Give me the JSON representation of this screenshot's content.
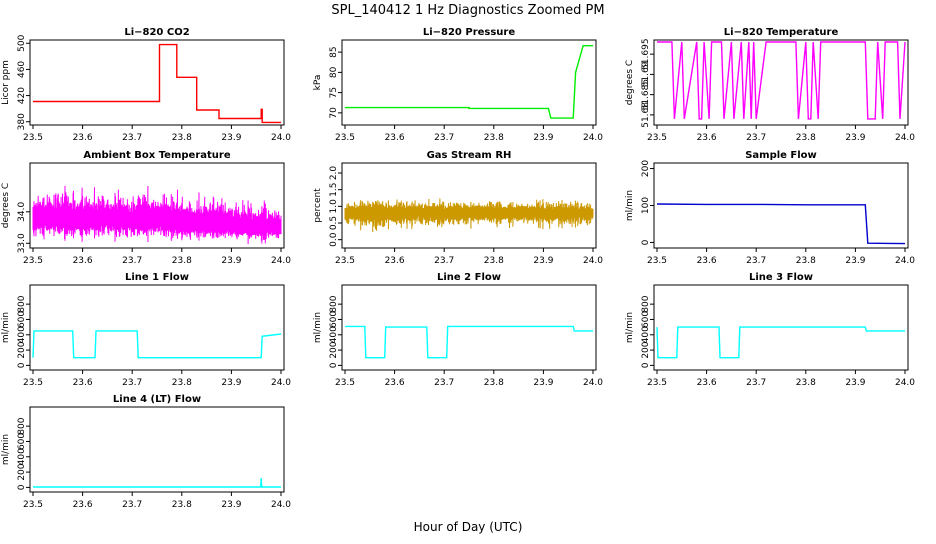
{
  "title": "SPL_140412  1 Hz Diagnostics Zoomed PM",
  "xlabel": "Hour of Day (UTC)",
  "chart_data": [
    {
      "type": "line",
      "title": "Li−820 CO2",
      "ylabel": "Licor ppm",
      "color": "#ff0000",
      "xlim": [
        23.5,
        24.0
      ],
      "ylim": [
        375,
        505
      ],
      "yticks": [
        380,
        420,
        460,
        500
      ],
      "x": [
        23.5,
        23.755,
        23.755,
        23.79,
        23.79,
        23.83,
        23.83,
        23.875,
        23.875,
        23.96,
        23.96,
        23.962,
        23.962,
        24.0
      ],
      "y": [
        411,
        411,
        498,
        498,
        448,
        448,
        398,
        398,
        385,
        385,
        399,
        399,
        379,
        379
      ]
    },
    {
      "type": "line",
      "title": "Li−820 Pressure",
      "ylabel": "kPa",
      "color": "#00ee00",
      "xlim": [
        23.5,
        24.0
      ],
      "ylim": [
        67,
        88
      ],
      "yticks": [
        70,
        75,
        80,
        85
      ],
      "x": [
        23.5,
        23.75,
        23.75,
        23.91,
        23.915,
        23.96,
        23.965,
        23.98,
        23.985,
        24.0
      ],
      "y": [
        71.3,
        71.3,
        71.1,
        71.1,
        68.7,
        68.7,
        80.0,
        86.6,
        86.6,
        86.6
      ]
    },
    {
      "type": "line",
      "title": "Li−820 Temperature",
      "ylabel": "degrees C",
      "color": "#ff00ff",
      "xlim": [
        23.5,
        24.0
      ],
      "ylim": [
        51.6775,
        51.6985
      ],
      "yticks": [
        51.68,
        51.685,
        51.69,
        51.695
      ],
      "x": [
        23.5,
        23.53,
        23.535,
        23.55,
        23.555,
        23.58,
        23.585,
        23.59,
        23.595,
        23.605,
        23.61,
        23.63,
        23.635,
        23.65,
        23.655,
        23.67,
        23.675,
        23.685,
        23.69,
        23.695,
        23.7,
        23.72,
        23.725,
        23.78,
        23.785,
        23.8,
        23.805,
        23.81,
        23.815,
        23.825,
        23.83,
        23.92,
        23.925,
        23.94,
        23.945,
        23.955,
        23.96,
        23.985,
        23.99,
        24.0
      ],
      "y": [
        51.698,
        51.698,
        51.679,
        51.698,
        51.679,
        51.698,
        51.679,
        51.679,
        51.698,
        51.679,
        51.698,
        51.698,
        51.679,
        51.698,
        51.679,
        51.698,
        51.679,
        51.698,
        51.679,
        51.698,
        51.679,
        51.698,
        51.698,
        51.698,
        51.679,
        51.698,
        51.679,
        51.679,
        51.698,
        51.679,
        51.698,
        51.698,
        51.679,
        51.679,
        51.698,
        51.679,
        51.698,
        51.698,
        51.679,
        51.698
      ]
    },
    {
      "type": "line",
      "title": "Ambient Box Temperature",
      "ylabel": "degrees C",
      "color": "#ff00ff",
      "xlim": [
        23.5,
        24.0
      ],
      "ylim": [
        32.85,
        35.55
      ],
      "yticks": [
        33.0,
        34.0
      ],
      "x": [
        23.5,
        23.55,
        23.6,
        23.65,
        23.7,
        23.75,
        23.8,
        23.85,
        23.9,
        23.95,
        24.0
      ],
      "y": [
        33.7,
        33.8,
        33.7,
        33.8,
        33.7,
        33.75,
        33.6,
        33.6,
        33.55,
        33.5,
        33.5
      ],
      "band_min": [
        33.0,
        33.1,
        33.0,
        33.0,
        33.0,
        33.0,
        33.0,
        33.0,
        33.0,
        32.95,
        33.0
      ],
      "band_max": [
        34.9,
        34.9,
        34.8,
        34.8,
        34.8,
        34.9,
        34.7,
        34.6,
        34.6,
        34.4,
        34.3
      ]
    },
    {
      "type": "line",
      "title": "Gas Stream RH",
      "ylabel": "percent",
      "color": "#cc9900",
      "xlim": [
        23.5,
        24.0
      ],
      "ylim": [
        -0.25,
        2.3
      ],
      "yticks": [
        0.0,
        0.5,
        1.0,
        1.5,
        2.0
      ],
      "x": [
        23.5,
        23.55,
        23.6,
        23.65,
        23.7,
        23.75,
        23.8,
        23.85,
        23.9,
        23.95,
        24.0
      ],
      "y": [
        0.8,
        0.85,
        0.8,
        0.85,
        0.8,
        0.85,
        0.8,
        0.85,
        0.8,
        0.8,
        0.8
      ],
      "band_min": [
        0.3,
        0.2,
        0.25,
        0.3,
        0.3,
        0.3,
        0.35,
        0.3,
        0.3,
        0.35,
        0.35
      ],
      "band_max": [
        1.2,
        1.3,
        1.25,
        1.2,
        1.25,
        1.2,
        1.3,
        1.2,
        1.25,
        1.2,
        1.2
      ]
    },
    {
      "type": "line",
      "title": "Sample Flow",
      "ylabel": "ml/min",
      "color": "#0000cc",
      "xlim": [
        23.5,
        24.0
      ],
      "ylim": [
        -15,
        215
      ],
      "yticks": [
        0,
        100,
        200
      ],
      "x": [
        23.5,
        23.6,
        23.7,
        23.8,
        23.9,
        23.92,
        23.925,
        24.0
      ],
      "y": [
        104,
        103,
        103,
        102,
        102,
        102,
        -2,
        -3
      ]
    },
    {
      "type": "line",
      "title": "Line 1 Flow",
      "ylabel": "ml/min",
      "color": "#00ffff",
      "xlim": [
        23.5,
        24.0
      ],
      "ylim": [
        -60,
        1050
      ],
      "yticks": [
        0,
        200,
        400,
        600,
        800
      ],
      "x": [
        23.5,
        23.502,
        23.58,
        23.582,
        23.625,
        23.627,
        23.71,
        23.712,
        23.96,
        23.962,
        24.0
      ],
      "y": [
        100,
        450,
        450,
        100,
        100,
        450,
        450,
        100,
        100,
        380,
        410
      ]
    },
    {
      "type": "line",
      "title": "Line 2 Flow",
      "ylabel": "ml/min",
      "color": "#00ffff",
      "xlim": [
        23.5,
        24.0
      ],
      "ylim": [
        -60,
        1050
      ],
      "yticks": [
        0,
        200,
        400,
        600,
        800
      ],
      "x": [
        23.5,
        23.54,
        23.542,
        23.58,
        23.582,
        23.665,
        23.667,
        23.705,
        23.707,
        23.96,
        23.962,
        24.0
      ],
      "y": [
        510,
        510,
        100,
        100,
        500,
        500,
        100,
        100,
        510,
        510,
        450,
        450
      ]
    },
    {
      "type": "line",
      "title": "Line 3 Flow",
      "ylabel": "ml/min",
      "color": "#00ffff",
      "xlim": [
        23.5,
        24.0
      ],
      "ylim": [
        -60,
        1050
      ],
      "yticks": [
        0,
        200,
        400,
        600,
        800
      ],
      "x": [
        23.5,
        23.502,
        23.54,
        23.542,
        23.625,
        23.627,
        23.665,
        23.667,
        23.92,
        23.922,
        24.0
      ],
      "y": [
        500,
        100,
        100,
        500,
        500,
        100,
        100,
        500,
        500,
        450,
        450
      ]
    },
    {
      "type": "line",
      "title": "Line 4 (LT) Flow",
      "ylabel": "ml/min",
      "color": "#00ffff",
      "xlim": [
        23.5,
        24.0
      ],
      "ylim": [
        -60,
        1050
      ],
      "yticks": [
        0,
        200,
        400,
        600,
        800
      ],
      "x": [
        23.5,
        23.959,
        23.96,
        23.961,
        23.962,
        24.0
      ],
      "y": [
        5,
        5,
        120,
        5,
        5,
        5
      ]
    }
  ]
}
